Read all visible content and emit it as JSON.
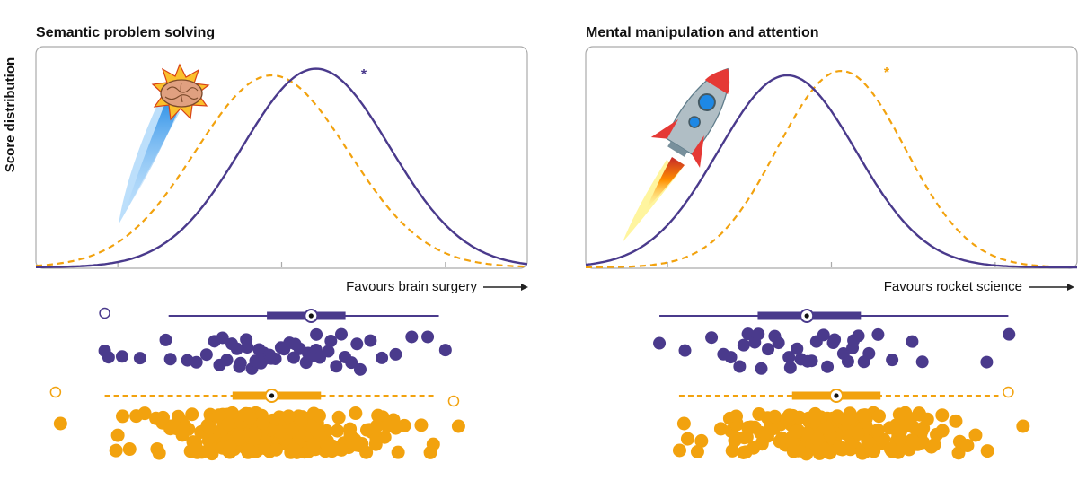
{
  "y_axis_label": "Score distribution",
  "colors": {
    "brain": "#4a3a8c",
    "rocket": "#f2a20e",
    "frame": "#aaaaaa"
  },
  "chart_data": [
    {
      "type": "line",
      "title": "Semantic problem solving",
      "xlabel": "Favours brain surgery",
      "ylabel": "Score distribution",
      "significance_marker": "*",
      "significant_series": "brain",
      "icon": "brain-icon",
      "series": [
        {
          "group": "brain",
          "style": "solid",
          "mean": 0.57,
          "sd": 0.15,
          "peak": 0.9
        },
        {
          "group": "rocket",
          "style": "dashed",
          "mean": 0.48,
          "sd": 0.155,
          "peak": 0.87
        }
      ],
      "boxplots": {
        "brain": {
          "min": 0.27,
          "q1": 0.47,
          "median": 0.56,
          "q3": 0.63,
          "max": 0.82
        },
        "rocket": {
          "min": 0.14,
          "q1": 0.4,
          "median": 0.48,
          "q3": 0.58,
          "max": 0.81
        }
      },
      "points": {
        "brain": [
          0.15,
          0.17,
          0.21,
          0.26,
          0.27,
          0.31,
          0.33,
          0.35,
          0.36,
          0.37,
          0.38,
          0.39,
          0.4,
          0.41,
          0.41,
          0.42,
          0.43,
          0.43,
          0.44,
          0.45,
          0.45,
          0.46,
          0.46,
          0.47,
          0.48,
          0.48,
          0.49,
          0.5,
          0.5,
          0.51,
          0.52,
          0.53,
          0.53,
          0.54,
          0.55,
          0.55,
          0.56,
          0.57,
          0.57,
          0.58,
          0.59,
          0.6,
          0.61,
          0.62,
          0.63,
          0.64,
          0.65,
          0.66,
          0.68,
          0.7,
          0.73,
          0.76,
          0.8,
          0.83
        ],
        "brain_outlier_hollow": 0.14,
        "rocket_outlier_hollow": [
          0.04,
          0.85
        ]
      }
    },
    {
      "type": "line",
      "title": "Mental manipulation and attention",
      "xlabel": "Favours rocket science",
      "ylabel": "",
      "significance_marker": "*",
      "significant_series": "rocket",
      "icon": "rocket-icon",
      "series": [
        {
          "group": "brain",
          "style": "solid",
          "mean": 0.41,
          "sd": 0.14,
          "peak": 0.87
        },
        {
          "group": "rocket",
          "style": "dashed",
          "mean": 0.52,
          "sd": 0.13,
          "peak": 0.89
        }
      ],
      "boxplots": {
        "brain": {
          "min": 0.15,
          "q1": 0.35,
          "median": 0.45,
          "q3": 0.56,
          "max": 0.86
        },
        "rocket": {
          "min": 0.19,
          "q1": 0.42,
          "median": 0.51,
          "q3": 0.6,
          "max": 0.84
        }
      },
      "points": {
        "brain": [
          0.15,
          0.2,
          0.26,
          0.28,
          0.3,
          0.31,
          0.32,
          0.33,
          0.34,
          0.35,
          0.36,
          0.37,
          0.38,
          0.39,
          0.41,
          0.42,
          0.43,
          0.44,
          0.45,
          0.46,
          0.47,
          0.48,
          0.49,
          0.5,
          0.51,
          0.52,
          0.53,
          0.54,
          0.55,
          0.56,
          0.57,
          0.58,
          0.6,
          0.62,
          0.66,
          0.69,
          0.82,
          0.86
        ],
        "brain_outlier_hollow": null,
        "rocket_outlier_hollow": [
          0.86
        ]
      }
    }
  ]
}
